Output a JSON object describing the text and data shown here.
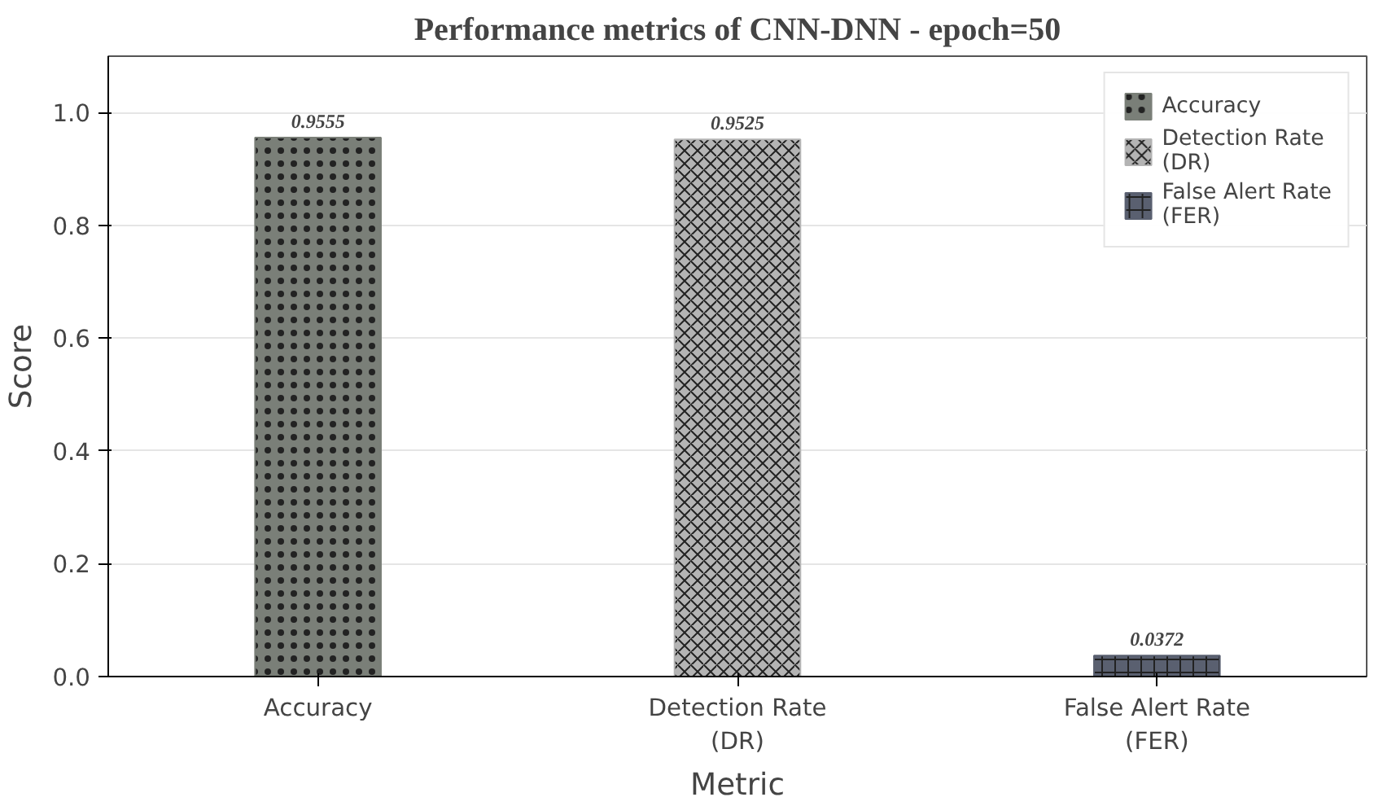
{
  "chart_data": {
    "type": "bar",
    "title": "Performance metrics of CNN-DNN - epoch=50",
    "xlabel": "Metric",
    "ylabel": "Score",
    "categories": [
      "Accuracy",
      "Detection Rate\n(DR)",
      "False Alert Rate\n(FER)"
    ],
    "series": [
      {
        "name": "Accuracy",
        "color": "#7a7f78",
        "values": [
          0.9555,
          null,
          null
        ]
      },
      {
        "name": "Detection Rate\n(DR)",
        "color": "#b4b4b4",
        "values": [
          null,
          0.9525,
          null
        ]
      },
      {
        "name": "False Alert Rate\n(FER)",
        "color": "#5a6070",
        "values": [
          null,
          null,
          0.0372
        ]
      }
    ],
    "data_labels": true,
    "ylim": [
      0,
      1.1
    ],
    "yticks": [
      {
        "value": 0,
        "label": "0.0"
      },
      0.2,
      0.4,
      0.6,
      0.8,
      {
        "value": 1,
        "label": "1.0"
      }
    ],
    "grid": "y",
    "legend": "top right"
  }
}
